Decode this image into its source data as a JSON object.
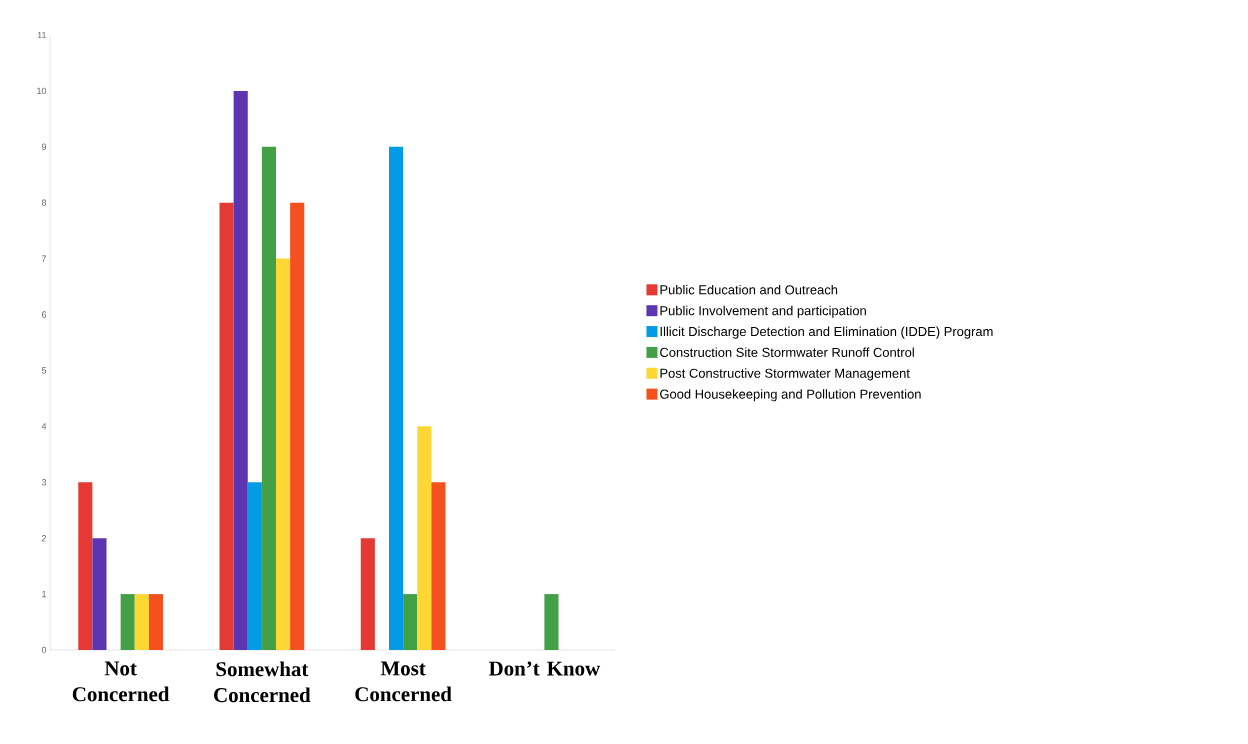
{
  "chart_data": {
    "type": "bar",
    "categories": [
      "Not Concerned",
      "Somewhat Concerned",
      "Most Concerned",
      "Don’t Know"
    ],
    "series": [
      {
        "name": "Public Education and Outreach",
        "color": "#e53935",
        "values": [
          3,
          8,
          2,
          0
        ]
      },
      {
        "name": "Public Involvement and participation",
        "color": "#5e35b1",
        "values": [
          2,
          10,
          0,
          0
        ]
      },
      {
        "name": "Illicit Discharge Detection and Elimination (IDDE) Program",
        "color": "#039be5",
        "values": [
          0,
          3,
          9,
          0
        ]
      },
      {
        "name": "Construction Site Stormwater Runoff Control",
        "color": "#43a047",
        "values": [
          1,
          9,
          1,
          1
        ]
      },
      {
        "name": "Post Constructive Stormwater Management",
        "color": "#fdd835",
        "values": [
          1,
          7,
          4,
          0
        ]
      },
      {
        "name": "Good Housekeeping and Pollution Prevention",
        "color": "#f4511e",
        "values": [
          1,
          8,
          3,
          0
        ]
      }
    ],
    "ylim": [
      0,
      11
    ],
    "yticks": [
      0,
      1,
      2,
      3,
      4,
      5,
      6,
      7,
      8,
      9,
      10,
      11
    ],
    "grid": false,
    "legend": "right"
  }
}
